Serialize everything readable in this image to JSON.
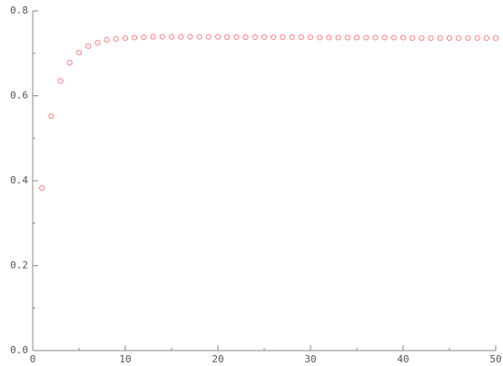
{
  "chart_data": {
    "type": "scatter",
    "x": [
      1,
      2,
      3,
      4,
      5,
      6,
      7,
      8,
      9,
      10,
      11,
      12,
      13,
      14,
      15,
      16,
      17,
      18,
      19,
      20,
      21,
      22,
      23,
      24,
      25,
      26,
      27,
      28,
      29,
      30,
      31,
      32,
      33,
      34,
      35,
      36,
      37,
      38,
      39,
      40,
      41,
      42,
      43,
      44,
      45,
      46,
      47,
      48,
      49,
      50
    ],
    "values": [
      0.383,
      0.552,
      0.635,
      0.678,
      0.702,
      0.717,
      0.725,
      0.732,
      0.734,
      0.736,
      0.737,
      0.738,
      0.739,
      0.739,
      0.739,
      0.739,
      0.739,
      0.739,
      0.739,
      0.739,
      0.738,
      0.738,
      0.738,
      0.738,
      0.738,
      0.738,
      0.738,
      0.738,
      0.738,
      0.738,
      0.737,
      0.737,
      0.737,
      0.737,
      0.737,
      0.737,
      0.737,
      0.737,
      0.737,
      0.737,
      0.736,
      0.736,
      0.736,
      0.736,
      0.736,
      0.736,
      0.736,
      0.736,
      0.736,
      0.736
    ],
    "color": "#ff8080",
    "xlim": [
      0,
      50
    ],
    "xticks": [
      0,
      10,
      20,
      30,
      40,
      50
    ],
    "xminorticks": [
      5,
      15,
      25,
      35,
      45
    ],
    "ylim": [
      0,
      0.8
    ],
    "yticks": [
      {
        "value": 0,
        "label": "0.0"
      },
      0.2,
      0.4,
      0.6,
      0.8
    ],
    "yminorticks": [
      0.1,
      0.3,
      0.5,
      0.7
    ]
  }
}
